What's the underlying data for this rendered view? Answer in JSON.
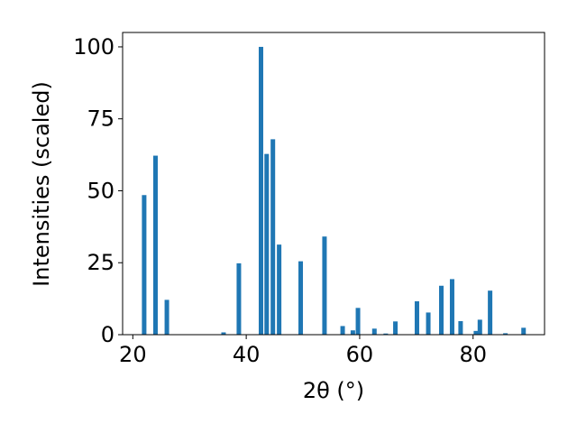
{
  "chart_data": {
    "type": "bar",
    "xlabel": "2θ (°)",
    "ylabel": "Intensities (scaled)",
    "xlim": [
      18.2,
      92.6
    ],
    "ylim": [
      0,
      105
    ],
    "xticks": [
      20,
      40,
      60,
      80
    ],
    "yticks": [
      0,
      25,
      50,
      75,
      100
    ],
    "bar_color": "#1f77b4",
    "points": [
      {
        "x": 22.0,
        "y": 48.5
      },
      {
        "x": 24.0,
        "y": 62.2
      },
      {
        "x": 26.0,
        "y": 12.1
      },
      {
        "x": 36.0,
        "y": 0.8
      },
      {
        "x": 38.7,
        "y": 24.8
      },
      {
        "x": 42.6,
        "y": 100.0
      },
      {
        "x": 43.6,
        "y": 62.8
      },
      {
        "x": 44.7,
        "y": 67.9
      },
      {
        "x": 45.8,
        "y": 31.3
      },
      {
        "x": 49.6,
        "y": 25.5
      },
      {
        "x": 53.8,
        "y": 34.1
      },
      {
        "x": 57.0,
        "y": 3.0
      },
      {
        "x": 58.8,
        "y": 1.5
      },
      {
        "x": 59.7,
        "y": 9.3
      },
      {
        "x": 62.6,
        "y": 2.1
      },
      {
        "x": 64.6,
        "y": 0.4
      },
      {
        "x": 66.3,
        "y": 4.6
      },
      {
        "x": 70.1,
        "y": 11.6
      },
      {
        "x": 72.1,
        "y": 7.7
      },
      {
        "x": 74.4,
        "y": 17.0
      },
      {
        "x": 76.3,
        "y": 19.3
      },
      {
        "x": 77.8,
        "y": 4.7
      },
      {
        "x": 80.5,
        "y": 1.3
      },
      {
        "x": 81.2,
        "y": 5.2
      },
      {
        "x": 83.0,
        "y": 15.3
      },
      {
        "x": 85.7,
        "y": 0.5
      },
      {
        "x": 88.9,
        "y": 2.4
      }
    ]
  }
}
